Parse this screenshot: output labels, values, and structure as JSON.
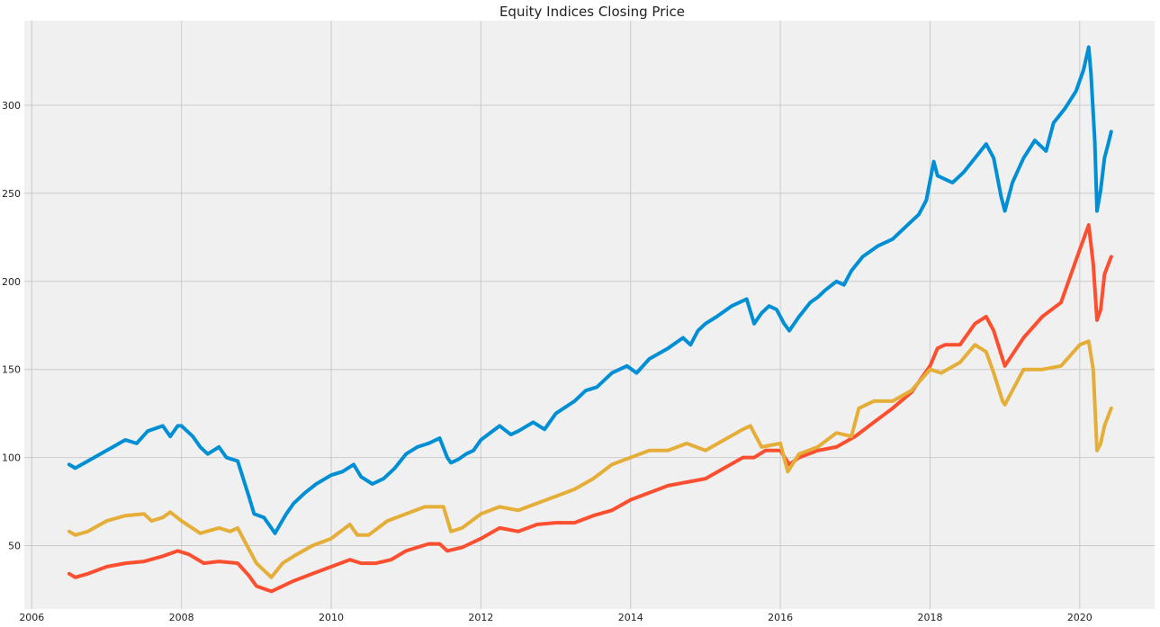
{
  "chart_data": {
    "type": "line",
    "title": "Equity Indices Closing Price",
    "xlabel": "",
    "ylabel": "",
    "xlim": [
      2005.9,
      2021.0
    ],
    "ylim": [
      14,
      348
    ],
    "x_ticks": [
      2006,
      2008,
      2010,
      2012,
      2014,
      2016,
      2018,
      2020
    ],
    "x_tick_labels": [
      "2006",
      "2008",
      "2010",
      "2012",
      "2014",
      "2016",
      "2018",
      "2020"
    ],
    "y_ticks": [
      50,
      100,
      150,
      200,
      250,
      300
    ],
    "y_tick_labels": [
      "50",
      "100",
      "150",
      "200",
      "250",
      "300"
    ],
    "grid": true,
    "legend": "none",
    "background_color": "#f0f0f0",
    "grid_color": "#cbcbcb",
    "series": [
      {
        "color": "#008fd5",
        "points": [
          [
            2006.5,
            96
          ],
          [
            2006.58,
            94
          ],
          [
            2006.75,
            98
          ],
          [
            2007.0,
            104
          ],
          [
            2007.25,
            110
          ],
          [
            2007.4,
            108
          ],
          [
            2007.55,
            115
          ],
          [
            2007.75,
            118
          ],
          [
            2007.85,
            112
          ],
          [
            2007.95,
            118
          ],
          [
            2008.0,
            118
          ],
          [
            2008.15,
            112
          ],
          [
            2008.25,
            106
          ],
          [
            2008.35,
            102
          ],
          [
            2008.5,
            106
          ],
          [
            2008.6,
            100
          ],
          [
            2008.75,
            98
          ],
          [
            2008.9,
            78
          ],
          [
            2008.97,
            68
          ],
          [
            2009.1,
            66
          ],
          [
            2009.2,
            60
          ],
          [
            2009.25,
            57
          ],
          [
            2009.4,
            68
          ],
          [
            2009.5,
            74
          ],
          [
            2009.65,
            80
          ],
          [
            2009.8,
            85
          ],
          [
            2010.0,
            90
          ],
          [
            2010.15,
            92
          ],
          [
            2010.3,
            96
          ],
          [
            2010.4,
            89
          ],
          [
            2010.55,
            85
          ],
          [
            2010.7,
            88
          ],
          [
            2010.85,
            94
          ],
          [
            2011.0,
            102
          ],
          [
            2011.15,
            106
          ],
          [
            2011.3,
            108
          ],
          [
            2011.45,
            111
          ],
          [
            2011.55,
            100
          ],
          [
            2011.6,
            97
          ],
          [
            2011.7,
            99
          ],
          [
            2011.8,
            102
          ],
          [
            2011.9,
            104
          ],
          [
            2012.0,
            110
          ],
          [
            2012.25,
            118
          ],
          [
            2012.4,
            113
          ],
          [
            2012.5,
            115
          ],
          [
            2012.7,
            120
          ],
          [
            2012.85,
            116
          ],
          [
            2013.0,
            125
          ],
          [
            2013.25,
            132
          ],
          [
            2013.4,
            138
          ],
          [
            2013.55,
            140
          ],
          [
            2013.75,
            148
          ],
          [
            2013.95,
            152
          ],
          [
            2014.08,
            148
          ],
          [
            2014.25,
            156
          ],
          [
            2014.5,
            162
          ],
          [
            2014.7,
            168
          ],
          [
            2014.8,
            164
          ],
          [
            2014.9,
            172
          ],
          [
            2015.0,
            176
          ],
          [
            2015.15,
            180
          ],
          [
            2015.35,
            186
          ],
          [
            2015.45,
            188
          ],
          [
            2015.55,
            190
          ],
          [
            2015.65,
            176
          ],
          [
            2015.75,
            182
          ],
          [
            2015.85,
            186
          ],
          [
            2015.95,
            184
          ],
          [
            2016.05,
            176
          ],
          [
            2016.12,
            172
          ],
          [
            2016.25,
            180
          ],
          [
            2016.4,
            188
          ],
          [
            2016.5,
            191
          ],
          [
            2016.6,
            195
          ],
          [
            2016.75,
            200
          ],
          [
            2016.85,
            198
          ],
          [
            2016.95,
            206
          ],
          [
            2017.1,
            214
          ],
          [
            2017.3,
            220
          ],
          [
            2017.5,
            224
          ],
          [
            2017.7,
            232
          ],
          [
            2017.85,
            238
          ],
          [
            2017.95,
            246
          ],
          [
            2018.05,
            268
          ],
          [
            2018.1,
            260
          ],
          [
            2018.2,
            258
          ],
          [
            2018.3,
            256
          ],
          [
            2018.45,
            262
          ],
          [
            2018.6,
            270
          ],
          [
            2018.75,
            278
          ],
          [
            2018.85,
            270
          ],
          [
            2018.95,
            248
          ],
          [
            2019.0,
            240
          ],
          [
            2019.1,
            256
          ],
          [
            2019.25,
            270
          ],
          [
            2019.4,
            280
          ],
          [
            2019.55,
            274
          ],
          [
            2019.65,
            290
          ],
          [
            2019.8,
            298
          ],
          [
            2019.95,
            308
          ],
          [
            2020.05,
            320
          ],
          [
            2020.12,
            333
          ],
          [
            2020.15,
            318
          ],
          [
            2020.2,
            280
          ],
          [
            2020.23,
            240
          ],
          [
            2020.28,
            252
          ],
          [
            2020.33,
            270
          ],
          [
            2020.38,
            278
          ],
          [
            2020.42,
            285
          ]
        ]
      },
      {
        "color": "#fc4f30",
        "points": [
          [
            2006.5,
            34
          ],
          [
            2006.58,
            32
          ],
          [
            2006.75,
            34
          ],
          [
            2007.0,
            38
          ],
          [
            2007.25,
            40
          ],
          [
            2007.5,
            41
          ],
          [
            2007.75,
            44
          ],
          [
            2007.95,
            47
          ],
          [
            2008.1,
            45
          ],
          [
            2008.3,
            40
          ],
          [
            2008.5,
            41
          ],
          [
            2008.75,
            40
          ],
          [
            2008.9,
            33
          ],
          [
            2009.0,
            27
          ],
          [
            2009.2,
            24
          ],
          [
            2009.5,
            30
          ],
          [
            2009.75,
            34
          ],
          [
            2010.0,
            38
          ],
          [
            2010.25,
            42
          ],
          [
            2010.4,
            40
          ],
          [
            2010.6,
            40
          ],
          [
            2010.8,
            42
          ],
          [
            2011.0,
            47
          ],
          [
            2011.3,
            51
          ],
          [
            2011.45,
            51
          ],
          [
            2011.55,
            47
          ],
          [
            2011.75,
            49
          ],
          [
            2012.0,
            54
          ],
          [
            2012.25,
            60
          ],
          [
            2012.5,
            58
          ],
          [
            2012.75,
            62
          ],
          [
            2013.0,
            63
          ],
          [
            2013.25,
            63
          ],
          [
            2013.5,
            67
          ],
          [
            2013.75,
            70
          ],
          [
            2014.0,
            76
          ],
          [
            2014.25,
            80
          ],
          [
            2014.5,
            84
          ],
          [
            2014.75,
            86
          ],
          [
            2015.0,
            88
          ],
          [
            2015.25,
            94
          ],
          [
            2015.5,
            100
          ],
          [
            2015.65,
            100
          ],
          [
            2015.8,
            104
          ],
          [
            2016.0,
            104
          ],
          [
            2016.12,
            96
          ],
          [
            2016.25,
            100
          ],
          [
            2016.5,
            104
          ],
          [
            2016.75,
            106
          ],
          [
            2017.0,
            112
          ],
          [
            2017.25,
            120
          ],
          [
            2017.5,
            128
          ],
          [
            2017.75,
            137
          ],
          [
            2018.0,
            152
          ],
          [
            2018.1,
            162
          ],
          [
            2018.2,
            164
          ],
          [
            2018.4,
            164
          ],
          [
            2018.6,
            176
          ],
          [
            2018.75,
            180
          ],
          [
            2018.85,
            172
          ],
          [
            2018.97,
            156
          ],
          [
            2019.0,
            152
          ],
          [
            2019.25,
            168
          ],
          [
            2019.5,
            180
          ],
          [
            2019.75,
            188
          ],
          [
            2020.0,
            218
          ],
          [
            2020.12,
            232
          ],
          [
            2020.18,
            210
          ],
          [
            2020.23,
            178
          ],
          [
            2020.28,
            184
          ],
          [
            2020.33,
            204
          ],
          [
            2020.42,
            214
          ]
        ]
      },
      {
        "color": "#e5ae38",
        "points": [
          [
            2006.5,
            58
          ],
          [
            2006.58,
            56
          ],
          [
            2006.75,
            58
          ],
          [
            2007.0,
            64
          ],
          [
            2007.25,
            67
          ],
          [
            2007.5,
            68
          ],
          [
            2007.6,
            64
          ],
          [
            2007.75,
            66
          ],
          [
            2007.85,
            69
          ],
          [
            2008.0,
            64
          ],
          [
            2008.25,
            57
          ],
          [
            2008.5,
            60
          ],
          [
            2008.65,
            58
          ],
          [
            2008.75,
            60
          ],
          [
            2008.9,
            48
          ],
          [
            2009.0,
            40
          ],
          [
            2009.1,
            36
          ],
          [
            2009.2,
            32
          ],
          [
            2009.35,
            40
          ],
          [
            2009.5,
            44
          ],
          [
            2009.75,
            50
          ],
          [
            2010.0,
            54
          ],
          [
            2010.25,
            62
          ],
          [
            2010.35,
            56
          ],
          [
            2010.5,
            56
          ],
          [
            2010.75,
            64
          ],
          [
            2011.0,
            68
          ],
          [
            2011.25,
            72
          ],
          [
            2011.5,
            72
          ],
          [
            2011.6,
            58
          ],
          [
            2011.75,
            60
          ],
          [
            2012.0,
            68
          ],
          [
            2012.25,
            72
          ],
          [
            2012.5,
            70
          ],
          [
            2012.75,
            74
          ],
          [
            2013.0,
            78
          ],
          [
            2013.25,
            82
          ],
          [
            2013.5,
            88
          ],
          [
            2013.75,
            96
          ],
          [
            2014.0,
            100
          ],
          [
            2014.25,
            104
          ],
          [
            2014.5,
            104
          ],
          [
            2014.75,
            108
          ],
          [
            2015.0,
            104
          ],
          [
            2015.25,
            110
          ],
          [
            2015.5,
            116
          ],
          [
            2015.6,
            118
          ],
          [
            2015.75,
            106
          ],
          [
            2016.0,
            108
          ],
          [
            2016.1,
            92
          ],
          [
            2016.25,
            102
          ],
          [
            2016.5,
            106
          ],
          [
            2016.75,
            114
          ],
          [
            2016.95,
            112
          ],
          [
            2017.05,
            128
          ],
          [
            2017.25,
            132
          ],
          [
            2017.5,
            132
          ],
          [
            2017.75,
            138
          ],
          [
            2018.0,
            150
          ],
          [
            2018.15,
            148
          ],
          [
            2018.4,
            154
          ],
          [
            2018.6,
            164
          ],
          [
            2018.75,
            160
          ],
          [
            2018.85,
            148
          ],
          [
            2018.97,
            132
          ],
          [
            2019.0,
            130
          ],
          [
            2019.25,
            150
          ],
          [
            2019.5,
            150
          ],
          [
            2019.75,
            152
          ],
          [
            2020.0,
            164
          ],
          [
            2020.12,
            166
          ],
          [
            2020.18,
            150
          ],
          [
            2020.23,
            104
          ],
          [
            2020.28,
            108
          ],
          [
            2020.33,
            118
          ],
          [
            2020.42,
            128
          ]
        ]
      }
    ]
  }
}
